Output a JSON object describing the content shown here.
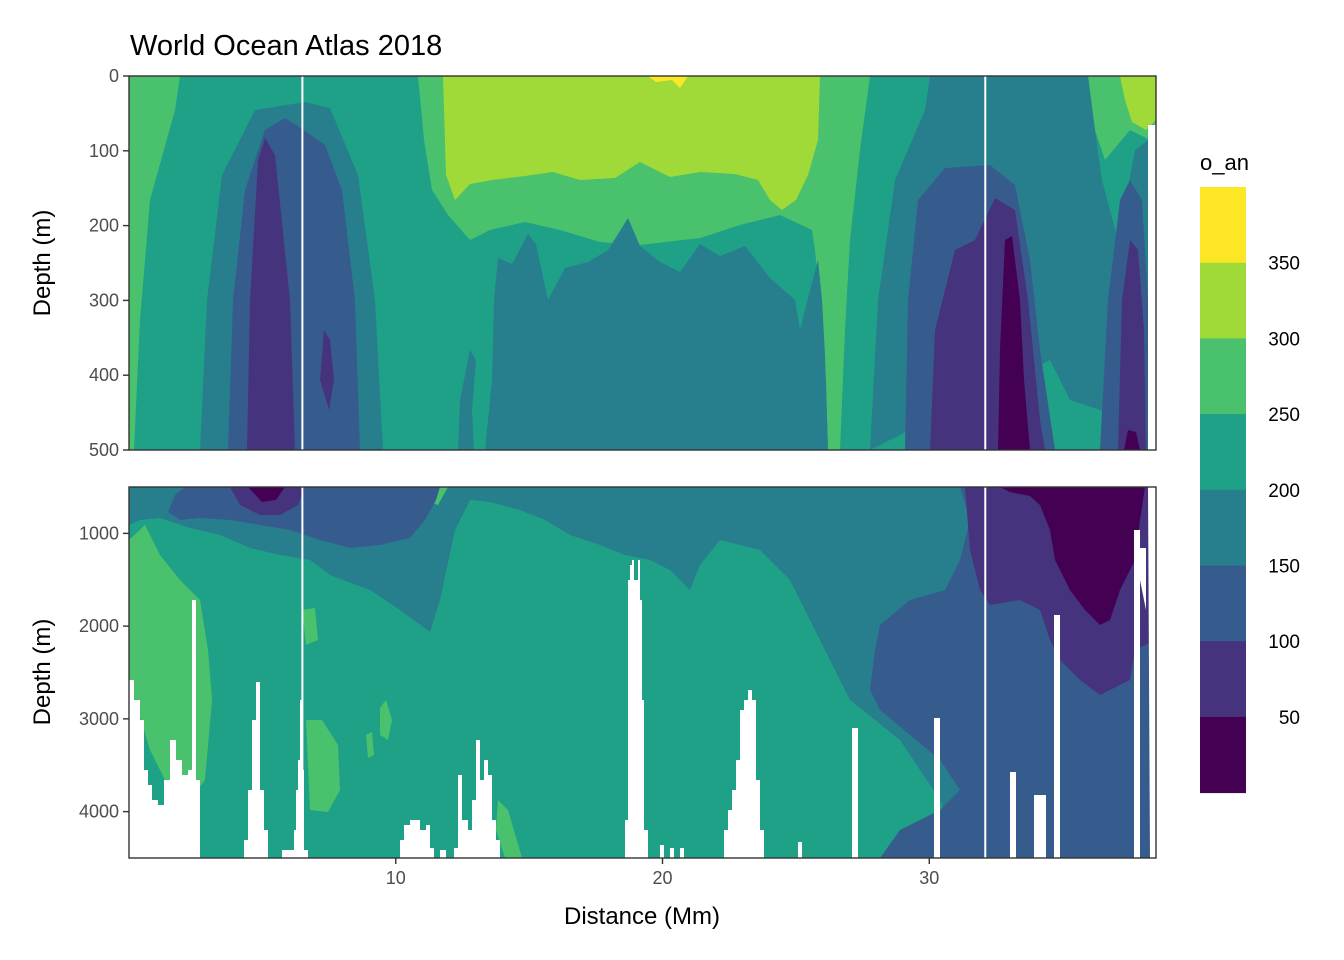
{
  "chart_data": {
    "type": "heatmap",
    "title": "World Ocean Atlas 2018",
    "xlabel": "Distance (Mm)",
    "ylabel": "Depth (m)",
    "xlim": [
      0,
      38.5
    ],
    "x_ticks": [
      10,
      20,
      30
    ],
    "panels": [
      {
        "name": "upper",
        "ylim": [
          0,
          500
        ],
        "y_ticks": [
          0,
          100,
          200,
          300,
          400,
          500
        ]
      },
      {
        "name": "lower",
        "ylim": [
          500,
          4500
        ],
        "y_ticks": [
          1000,
          2000,
          3000,
          4000
        ]
      }
    ],
    "legend": {
      "title": "o_an",
      "position": "right",
      "breaks": [
        50,
        100,
        150,
        200,
        250,
        300,
        350
      ],
      "colors": [
        "#440154",
        "#46337E",
        "#365C8D",
        "#277F8E",
        "#1FA187",
        "#4AC16D",
        "#A0DA39",
        "#FDE725"
      ]
    },
    "grid": true,
    "reference_lines_x": [
      6.5,
      32.1
    ]
  }
}
